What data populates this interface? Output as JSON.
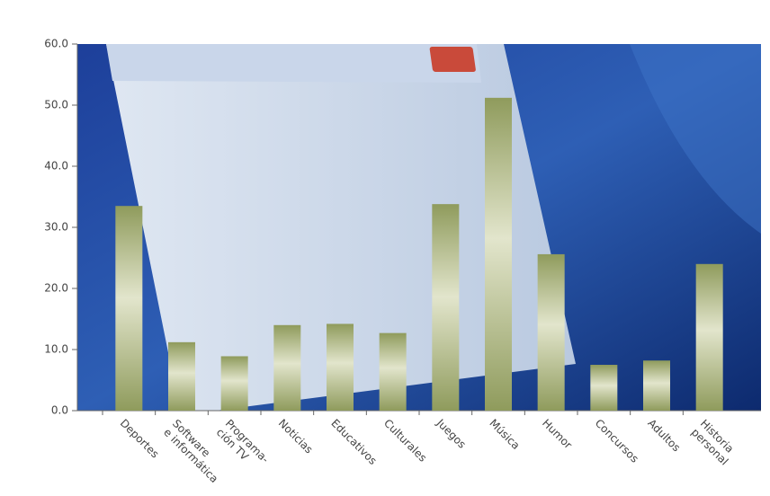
{
  "chart_data": {
    "type": "bar",
    "categories": [
      "Deportes",
      "Software\ne informática",
      "Programa-\nción TV",
      "Noticias",
      "Educativos",
      "Culturales",
      "Juegos",
      "Música",
      "Humor",
      "Concursos",
      "Adultos",
      "Historia\npersonal"
    ],
    "values": [
      33.5,
      11.2,
      8.9,
      14.0,
      14.2,
      12.7,
      33.8,
      51.2,
      25.6,
      7.5,
      8.2,
      24.0
    ],
    "color": "#8f9b5c",
    "ylim": [
      0,
      60
    ],
    "yticks": [
      {
        "value": 0,
        "label": "0.0"
      },
      {
        "value": 10,
        "label": "10.0"
      },
      {
        "value": 20,
        "label": "20.0"
      },
      {
        "value": 30,
        "label": "30.0"
      },
      {
        "value": 40,
        "label": "40.0"
      },
      {
        "value": 50,
        "label": "50.0"
      },
      {
        "value": 60,
        "label": "60.0"
      }
    ]
  }
}
